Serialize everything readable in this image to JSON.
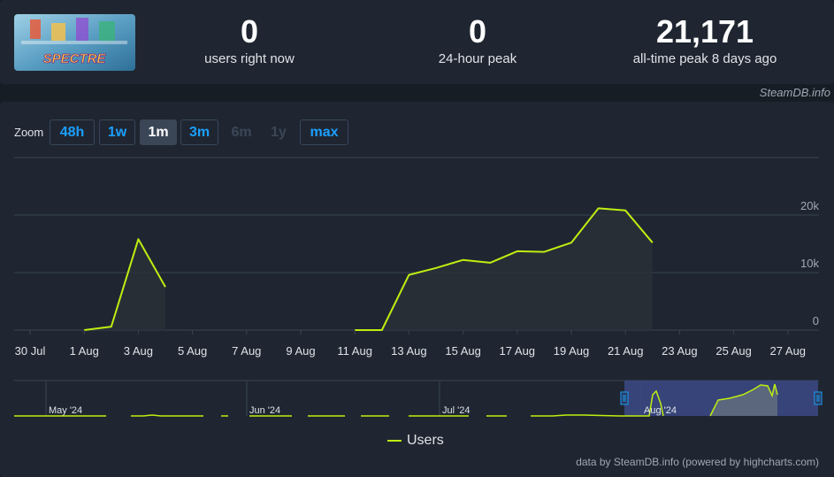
{
  "stats": [
    {
      "value": "0",
      "label": "users right now"
    },
    {
      "value": "0",
      "label": "24-hour peak"
    },
    {
      "value": "21,171",
      "label": "all-time peak 8 days ago"
    }
  ],
  "logo_text": "SPECTRE",
  "credit_top": "SteamDB.info",
  "zoom": {
    "label": "Zoom",
    "buttons": [
      {
        "label": "48h",
        "state": "normal"
      },
      {
        "label": "1w",
        "state": "normal"
      },
      {
        "label": "1m",
        "state": "active"
      },
      {
        "label": "3m",
        "state": "normal"
      },
      {
        "label": "6m",
        "state": "disabled"
      },
      {
        "label": "1y",
        "state": "disabled"
      },
      {
        "label": "max",
        "state": "normal"
      }
    ]
  },
  "navigator_labels": [
    "May '24",
    "Jun '24",
    "Jul '24",
    "Aug '24"
  ],
  "legend_label": "Users",
  "credit_bottom": "data by SteamDB.info (powered by highcharts.com)",
  "colors": {
    "series": "#beee11",
    "accent": "#1b9fff",
    "grid": "#3a4452",
    "navigator_mask": "#3c4a86"
  },
  "chart_data": {
    "type": "line",
    "series": [
      {
        "name": "Users",
        "points": [
          [
            "30 Jul",
            100
          ],
          [
            "1 Aug",
            0
          ],
          [
            "2 Aug",
            600
          ],
          [
            "3 Aug",
            15800
          ],
          [
            "4 Aug",
            7500
          ],
          [
            "7 Aug",
            0
          ],
          [
            "11 Aug",
            0
          ],
          [
            "12 Aug",
            0
          ],
          [
            "13 Aug",
            9600
          ],
          [
            "14 Aug",
            10800
          ],
          [
            "15 Aug",
            12200
          ],
          [
            "16 Aug",
            11700
          ],
          [
            "17 Aug",
            13700
          ],
          [
            "18 Aug",
            13600
          ],
          [
            "19 Aug",
            15200
          ],
          [
            "20 Aug",
            21171
          ],
          [
            "21 Aug",
            20800
          ],
          [
            "22 Aug",
            15200
          ]
        ]
      }
    ],
    "x_ticks": [
      "30 Jul",
      "1 Aug",
      "3 Aug",
      "5 Aug",
      "7 Aug",
      "9 Aug",
      "11 Aug",
      "13 Aug",
      "15 Aug",
      "17 Aug",
      "19 Aug",
      "21 Aug",
      "23 Aug",
      "25 Aug",
      "27 Aug"
    ],
    "y_ticks": [
      0,
      10000,
      20000
    ],
    "y_tick_labels": [
      "0",
      "10k",
      "20k"
    ],
    "ylim": [
      0,
      30000
    ],
    "grid": true,
    "legend": "bottom-center"
  }
}
